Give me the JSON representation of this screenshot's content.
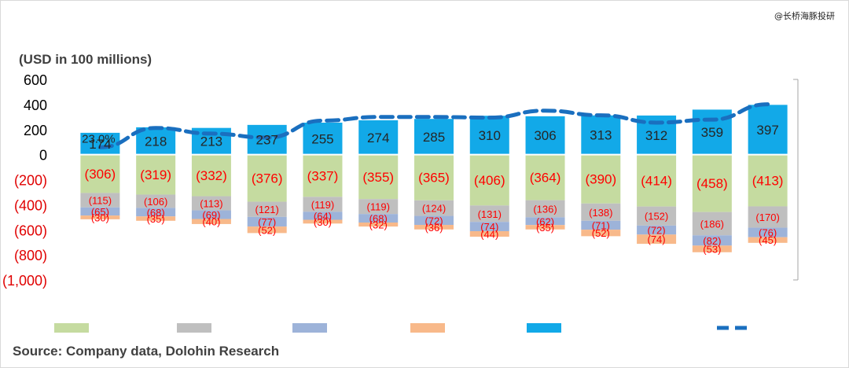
{
  "watermark": "@长桥海豚投研",
  "unit_label": "(USD in 100 millions)",
  "source_note": "Source:  Company data, Dolohin Research",
  "colors": {
    "series_1": "#c5dba0",
    "series_2": "#bfbfbf",
    "series_3": "#9db3d9",
    "series_4": "#f8b98a",
    "series_5": "#12a9e8",
    "line": "#1a6fbf",
    "negative_label": "#ff0000",
    "positive_label": "#262626",
    "axis_label_negative": "#e00000"
  },
  "chart_data": {
    "type": "bar",
    "stacked": true,
    "ylim": [
      -1000,
      600
    ],
    "yticks": [
      600,
      400,
      200,
      0,
      -200,
      -400,
      -600,
      -800,
      -1000
    ],
    "ytick_labels": [
      "600",
      "400",
      "200",
      "0",
      "(200)",
      "(400)",
      "(600)",
      "(800)",
      "(1,000)"
    ],
    "categories": [
      "",
      "",
      "",
      "",
      "",
      "",
      "",
      "",
      "",
      "",
      "",
      "",
      ""
    ],
    "series": [
      {
        "values": [
          -306,
          -319,
          -332,
          -376,
          -337,
          -355,
          -365,
          -406,
          -364,
          -390,
          -414,
          -458,
          -413
        ],
        "labels": [
          "(306)",
          "(319)",
          "(332)",
          "(376)",
          "(337)",
          "(355)",
          "(365)",
          "(406)",
          "(364)",
          "(390)",
          "(414)",
          "(458)",
          "(413)"
        ]
      },
      {
        "values": [
          -115,
          -106,
          -113,
          -121,
          -119,
          -119,
          -124,
          -131,
          -136,
          -138,
          -152,
          -186,
          -170
        ],
        "labels": [
          "(115)",
          "(106)",
          "(113)",
          "(121)",
          "(119)",
          "(119)",
          "(124)",
          "(131)",
          "(136)",
          "(138)",
          "(152)",
          "(186)",
          "(170)"
        ]
      },
      {
        "values": [
          -65,
          -68,
          -69,
          -77,
          -64,
          -68,
          -72,
          -74,
          -62,
          -71,
          -72,
          -82,
          -76
        ],
        "labels": [
          "(65)",
          "(68)",
          "(69)",
          "(77)",
          "(64)",
          "(68)",
          "(72)",
          "(74)",
          "(62)",
          "(71)",
          "(72)",
          "(82)",
          "(76)"
        ]
      },
      {
        "values": [
          -30,
          -35,
          -40,
          -52,
          -30,
          -32,
          -36,
          -44,
          -35,
          -52,
          -74,
          -53,
          -45
        ],
        "labels": [
          "(30)",
          "(35)",
          "(40)",
          "(52)",
          "(30)",
          "(32)",
          "(36)",
          "(44)",
          "(35)",
          "(52)",
          "(74)",
          "(53)",
          "(45)"
        ]
      },
      {
        "values": [
          174,
          218,
          213,
          237,
          255,
          274,
          285,
          310,
          306,
          313,
          312,
          359,
          397
        ],
        "labels": [
          "174",
          "218",
          "213",
          "237",
          "255",
          "274",
          "285",
          "310",
          "306",
          "313",
          "312",
          "359",
          "397"
        ]
      }
    ],
    "line_series": {
      "style": "dashed",
      "axis": "secondary",
      "values": [
        23.0,
        28.8,
        27.1,
        25.9,
        31.0,
        32.1,
        32.1,
        31.9,
        34.0,
        32.6,
        30.4,
        31.3,
        35.9
      ],
      "first_label": "23.0%"
    },
    "legend_position": "bottom",
    "grid": false
  }
}
